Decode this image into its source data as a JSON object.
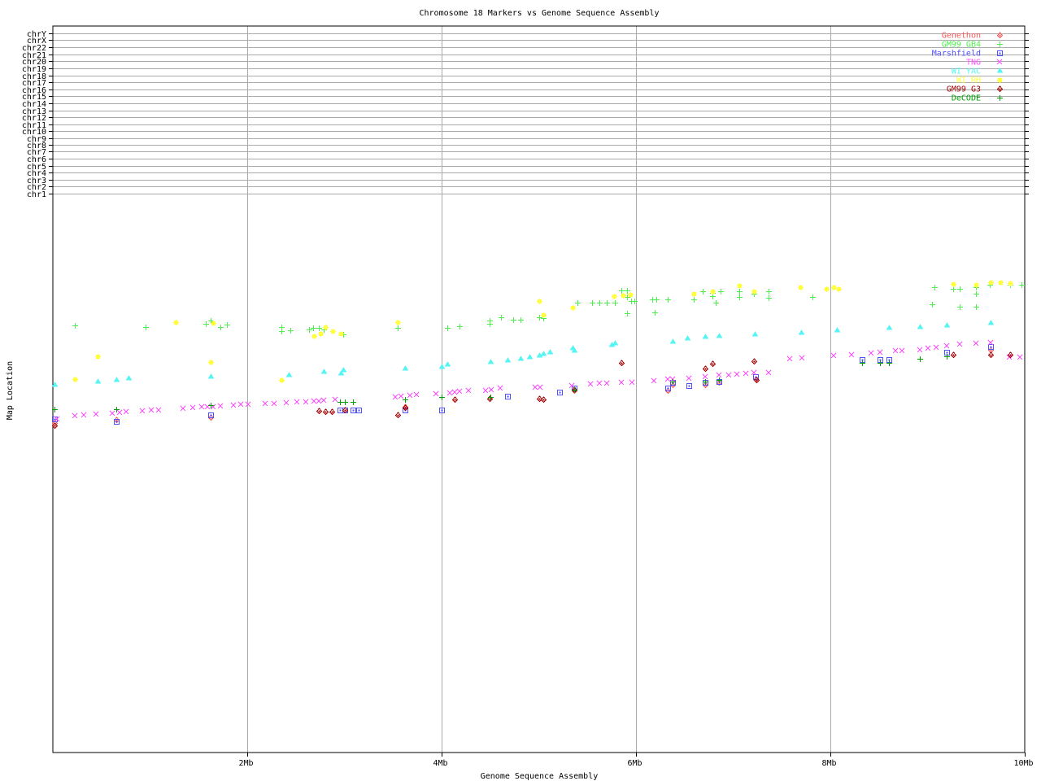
{
  "chart_data": {
    "type": "scatter",
    "title": "Chromosome 18 Markers vs Genome Sequence Assembly",
    "xlabel": "Genome Sequence Assembly",
    "ylabel": "Map Location",
    "xlim": [
      0,
      10
    ],
    "ylim": [
      0,
      100
    ],
    "grid": true,
    "legend_placement": "top-right",
    "x_ticks": [
      {
        "value": 2,
        "label": "2Mb"
      },
      {
        "value": 4,
        "label": "4Mb"
      },
      {
        "value": 6,
        "label": "6Mb"
      },
      {
        "value": 8,
        "label": "8Mb"
      },
      {
        "value": 10,
        "label": "10Mb"
      }
    ],
    "y_ticks": [
      {
        "value": 76.9,
        "label": "chr1"
      },
      {
        "value": 77.9,
        "label": "chr2"
      },
      {
        "value": 78.8,
        "label": "chr3"
      },
      {
        "value": 79.8,
        "label": "chr4"
      },
      {
        "value": 80.7,
        "label": "chr5"
      },
      {
        "value": 81.7,
        "label": "chr6"
      },
      {
        "value": 82.7,
        "label": "chr7"
      },
      {
        "value": 83.6,
        "label": "chr8"
      },
      {
        "value": 84.6,
        "label": "chr9"
      },
      {
        "value": 85.5,
        "label": "chr10"
      },
      {
        "value": 86.5,
        "label": "chr11"
      },
      {
        "value": 87.5,
        "label": "chr12"
      },
      {
        "value": 88.4,
        "label": "chr13"
      },
      {
        "value": 89.4,
        "label": "chr14"
      },
      {
        "value": 90.4,
        "label": "chr15"
      },
      {
        "value": 91.3,
        "label": "chr16"
      },
      {
        "value": 92.3,
        "label": "chr17"
      },
      {
        "value": 93.2,
        "label": "chr18"
      },
      {
        "value": 94.2,
        "label": "chr19"
      },
      {
        "value": 95.2,
        "label": "chr20"
      },
      {
        "value": 96.1,
        "label": "chr21"
      },
      {
        "value": 97.1,
        "label": "chr22"
      },
      {
        "value": 98.1,
        "label": "chrX"
      },
      {
        "value": 99.0,
        "label": "chrY"
      }
    ],
    "series": [
      {
        "name": "Genethon",
        "color": "#ff5555",
        "marker": "diamond",
        "points": [
          [
            0.02,
            45.4
          ],
          [
            0.65,
            45.8
          ],
          [
            1.62,
            46.1
          ],
          [
            3.62,
            47.6
          ],
          [
            5.36,
            49.8
          ],
          [
            6.33,
            49.8
          ],
          [
            6.38,
            50.6
          ],
          [
            6.71,
            50.6
          ],
          [
            6.85,
            51.0
          ],
          [
            7.23,
            51.4
          ],
          [
            9.65,
            55.4
          ]
        ]
      },
      {
        "name": "GM99 GB4",
        "color": "#4cf04c",
        "marker": "plus",
        "points": [
          [
            0.23,
            58.8
          ],
          [
            0.95,
            58.6
          ],
          [
            1.57,
            59.0
          ],
          [
            1.62,
            59.5
          ],
          [
            1.72,
            58.6
          ],
          [
            1.79,
            58.9
          ],
          [
            2.35,
            58.6
          ],
          [
            2.35,
            58.0
          ],
          [
            2.44,
            58.1
          ],
          [
            2.64,
            58.2
          ],
          [
            2.68,
            58.5
          ],
          [
            2.74,
            58.5
          ],
          [
            2.79,
            58.2
          ],
          [
            2.99,
            57.6
          ],
          [
            3.55,
            58.5
          ],
          [
            4.06,
            58.5
          ],
          [
            4.18,
            58.7
          ],
          [
            4.49,
            59.5
          ],
          [
            4.49,
            59.0
          ],
          [
            4.61,
            59.9
          ],
          [
            4.74,
            59.6
          ],
          [
            4.81,
            59.6
          ],
          [
            5.0,
            59.9
          ],
          [
            5.05,
            59.8
          ],
          [
            5.4,
            61.9
          ],
          [
            5.55,
            61.9
          ],
          [
            5.62,
            61.9
          ],
          [
            5.7,
            61.9
          ],
          [
            5.78,
            61.9
          ],
          [
            5.85,
            63.6
          ],
          [
            5.91,
            63.6
          ],
          [
            5.91,
            62.7
          ],
          [
            5.95,
            62.2
          ],
          [
            5.98,
            62.2
          ],
          [
            5.91,
            60.5
          ],
          [
            6.17,
            62.4
          ],
          [
            6.21,
            62.4
          ],
          [
            6.19,
            60.6
          ],
          [
            6.33,
            62.4
          ],
          [
            6.59,
            62.4
          ],
          [
            6.69,
            63.5
          ],
          [
            6.79,
            63.3
          ],
          [
            6.79,
            62.8
          ],
          [
            6.87,
            63.5
          ],
          [
            6.82,
            61.9
          ],
          [
            7.06,
            63.5
          ],
          [
            7.06,
            62.7
          ],
          [
            7.21,
            63.2
          ],
          [
            7.36,
            63.5
          ],
          [
            7.36,
            62.6
          ],
          [
            7.82,
            62.7
          ],
          [
            9.07,
            64.0
          ],
          [
            9.05,
            61.7
          ],
          [
            9.26,
            63.8
          ],
          [
            9.33,
            63.8
          ],
          [
            9.5,
            64.0
          ],
          [
            9.5,
            63.2
          ],
          [
            9.5,
            61.4
          ],
          [
            9.33,
            61.4
          ],
          [
            9.64,
            64.4
          ],
          [
            9.85,
            64.4
          ],
          [
            9.97,
            64.4
          ]
        ]
      },
      {
        "name": "Marshfield",
        "color": "#5050ff",
        "marker": "square",
        "points": [
          [
            0.02,
            45.9
          ],
          [
            0.65,
            45.6
          ],
          [
            1.62,
            46.5
          ],
          [
            2.95,
            47.2
          ],
          [
            3.0,
            47.2
          ],
          [
            3.09,
            47.2
          ],
          [
            3.15,
            47.2
          ],
          [
            3.62,
            47.2
          ],
          [
            4.0,
            47.2
          ],
          [
            4.68,
            49.1
          ],
          [
            5.21,
            49.6
          ],
          [
            5.36,
            50.2
          ],
          [
            6.33,
            50.2
          ],
          [
            6.38,
            51.0
          ],
          [
            6.54,
            50.5
          ],
          [
            6.71,
            51.0
          ],
          [
            6.85,
            51.1
          ],
          [
            7.23,
            51.7
          ],
          [
            8.33,
            54.1
          ],
          [
            8.51,
            54.1
          ],
          [
            8.6,
            54.1
          ],
          [
            9.2,
            55.1
          ],
          [
            9.65,
            55.9
          ]
        ]
      },
      {
        "name": "TNG",
        "color": "#ff50ff",
        "marker": "cross",
        "points": [
          [
            0.04,
            45.9
          ],
          [
            0.23,
            46.4
          ],
          [
            0.32,
            46.5
          ],
          [
            0.44,
            46.6
          ],
          [
            0.61,
            46.7
          ],
          [
            0.69,
            46.8
          ],
          [
            0.75,
            46.9
          ],
          [
            0.92,
            47.0
          ],
          [
            1.01,
            47.2
          ],
          [
            1.09,
            47.2
          ],
          [
            1.34,
            47.4
          ],
          [
            1.44,
            47.5
          ],
          [
            1.53,
            47.6
          ],
          [
            1.59,
            47.6
          ],
          [
            1.65,
            47.6
          ],
          [
            1.72,
            47.7
          ],
          [
            1.86,
            47.8
          ],
          [
            1.93,
            47.9
          ],
          [
            2.01,
            47.9
          ],
          [
            2.18,
            48.0
          ],
          [
            2.28,
            48.0
          ],
          [
            2.4,
            48.2
          ],
          [
            2.51,
            48.3
          ],
          [
            2.6,
            48.3
          ],
          [
            2.69,
            48.4
          ],
          [
            2.74,
            48.4
          ],
          [
            2.79,
            48.5
          ],
          [
            2.9,
            48.6
          ],
          [
            3.52,
            48.9
          ],
          [
            3.58,
            49.1
          ],
          [
            3.67,
            49.2
          ],
          [
            3.74,
            49.3
          ],
          [
            3.94,
            49.4
          ],
          [
            4.08,
            49.5
          ],
          [
            4.13,
            49.6
          ],
          [
            4.18,
            49.7
          ],
          [
            4.28,
            49.8
          ],
          [
            4.45,
            49.8
          ],
          [
            4.51,
            50.0
          ],
          [
            4.6,
            50.2
          ],
          [
            4.96,
            50.3
          ],
          [
            5.01,
            50.3
          ],
          [
            5.34,
            50.5
          ],
          [
            5.53,
            50.7
          ],
          [
            5.62,
            50.8
          ],
          [
            5.7,
            50.8
          ],
          [
            5.85,
            51.0
          ],
          [
            5.96,
            51.0
          ],
          [
            6.18,
            51.2
          ],
          [
            6.33,
            51.4
          ],
          [
            6.38,
            51.4
          ],
          [
            6.54,
            51.5
          ],
          [
            6.71,
            51.7
          ],
          [
            6.85,
            52.0
          ],
          [
            6.95,
            52.0
          ],
          [
            7.04,
            52.1
          ],
          [
            7.13,
            52.2
          ],
          [
            7.21,
            52.3
          ],
          [
            7.36,
            52.3
          ],
          [
            7.58,
            54.2
          ],
          [
            7.71,
            54.3
          ],
          [
            8.03,
            54.7
          ],
          [
            8.22,
            54.8
          ],
          [
            8.42,
            55.0
          ],
          [
            8.51,
            55.1
          ],
          [
            8.67,
            55.3
          ],
          [
            8.74,
            55.3
          ],
          [
            8.92,
            55.4
          ],
          [
            9.0,
            55.7
          ],
          [
            9.09,
            55.8
          ],
          [
            9.2,
            56.0
          ],
          [
            9.33,
            56.2
          ],
          [
            9.5,
            56.3
          ],
          [
            9.65,
            56.4
          ],
          [
            9.84,
            54.4
          ],
          [
            9.95,
            54.4
          ]
        ]
      },
      {
        "name": "WI YAC",
        "color": "#55f5f5",
        "marker": "triangle",
        "points": [
          [
            0.02,
            50.6
          ],
          [
            0.46,
            51.1
          ],
          [
            0.65,
            51.3
          ],
          [
            0.78,
            51.5
          ],
          [
            1.62,
            51.7
          ],
          [
            2.43,
            52.0
          ],
          [
            2.79,
            52.4
          ],
          [
            2.96,
            52.2
          ],
          [
            2.99,
            52.6
          ],
          [
            3.62,
            52.9
          ],
          [
            4.0,
            53.1
          ],
          [
            4.06,
            53.4
          ],
          [
            4.5,
            53.8
          ],
          [
            4.68,
            54.0
          ],
          [
            4.81,
            54.2
          ],
          [
            4.9,
            54.4
          ],
          [
            5.0,
            54.7
          ],
          [
            5.05,
            54.9
          ],
          [
            5.11,
            55.1
          ],
          [
            5.35,
            55.6
          ],
          [
            5.36,
            55.3
          ],
          [
            5.75,
            56.1
          ],
          [
            5.78,
            56.3
          ],
          [
            6.38,
            56.6
          ],
          [
            6.53,
            57.0
          ],
          [
            6.71,
            57.2
          ],
          [
            6.85,
            57.3
          ],
          [
            7.22,
            57.6
          ],
          [
            7.7,
            57.8
          ],
          [
            8.07,
            58.1
          ],
          [
            8.6,
            58.4
          ],
          [
            8.92,
            58.6
          ],
          [
            9.2,
            58.8
          ],
          [
            9.65,
            59.1
          ]
        ]
      },
      {
        "name": "WI RH",
        "color": "#ffff40",
        "marker": "star",
        "points": [
          [
            0.23,
            51.4
          ],
          [
            0.46,
            54.5
          ],
          [
            1.26,
            59.2
          ],
          [
            1.62,
            53.8
          ],
          [
            1.65,
            59.1
          ],
          [
            2.69,
            57.3
          ],
          [
            2.75,
            57.7
          ],
          [
            2.8,
            58.6
          ],
          [
            2.88,
            58.0
          ],
          [
            2.96,
            57.7
          ],
          [
            2.35,
            51.3
          ],
          [
            3.55,
            59.2
          ],
          [
            5.0,
            62.2
          ],
          [
            5.05,
            60.3
          ],
          [
            5.35,
            61.3
          ],
          [
            5.77,
            62.8
          ],
          [
            5.87,
            62.9
          ],
          [
            5.94,
            63.1
          ],
          [
            6.59,
            63.2
          ],
          [
            6.79,
            63.5
          ],
          [
            7.06,
            64.3
          ],
          [
            7.21,
            63.5
          ],
          [
            7.69,
            64.1
          ],
          [
            7.96,
            63.8
          ],
          [
            8.03,
            64.0
          ],
          [
            8.08,
            63.8
          ],
          [
            9.26,
            64.5
          ],
          [
            9.5,
            64.4
          ],
          [
            9.65,
            64.7
          ],
          [
            9.75,
            64.7
          ],
          [
            9.85,
            64.6
          ]
        ]
      },
      {
        "name": "GM99 G3",
        "color": "#a00000",
        "marker": "diamond",
        "points": [
          [
            0.02,
            45.0
          ],
          [
            2.74,
            47.0
          ],
          [
            2.8,
            46.9
          ],
          [
            2.87,
            46.9
          ],
          [
            3.0,
            47.2
          ],
          [
            3.55,
            46.5
          ],
          [
            3.62,
            47.5
          ],
          [
            4.13,
            48.6
          ],
          [
            4.49,
            48.7
          ],
          [
            5.0,
            48.7
          ],
          [
            5.05,
            48.6
          ],
          [
            5.36,
            50.0
          ],
          [
            5.85,
            53.6
          ],
          [
            6.71,
            52.8
          ],
          [
            6.79,
            53.5
          ],
          [
            7.21,
            53.9
          ],
          [
            7.24,
            51.3
          ],
          [
            9.26,
            54.8
          ],
          [
            9.65,
            54.8
          ],
          [
            9.85,
            54.8
          ]
        ]
      },
      {
        "name": "DeCODE",
        "color": "#00a000",
        "marker": "plus",
        "points": [
          [
            0.02,
            47.3
          ],
          [
            0.65,
            47.3
          ],
          [
            1.62,
            47.8
          ],
          [
            2.95,
            48.3
          ],
          [
            3.0,
            48.3
          ],
          [
            3.09,
            48.3
          ],
          [
            3.62,
            48.6
          ],
          [
            4.0,
            48.9
          ],
          [
            4.5,
            48.9
          ],
          [
            5.36,
            50.0
          ],
          [
            6.38,
            51.1
          ],
          [
            6.71,
            51.1
          ],
          [
            6.85,
            51.3
          ],
          [
            8.33,
            53.6
          ],
          [
            8.51,
            53.6
          ],
          [
            8.6,
            53.6
          ],
          [
            8.92,
            54.2
          ],
          [
            9.2,
            54.5
          ]
        ]
      }
    ]
  }
}
